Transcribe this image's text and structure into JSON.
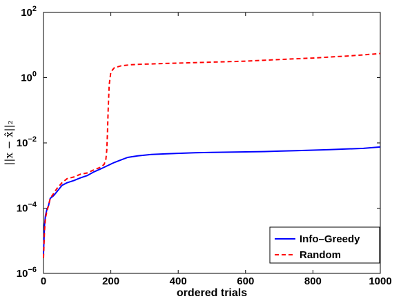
{
  "chart_data": {
    "type": "line",
    "title": "",
    "xlabel": "ordered trials",
    "ylabel": "||x − x̂||₂",
    "xlim": [
      0,
      1000
    ],
    "ylim": [
      1e-06,
      100
    ],
    "yscale": "log",
    "x_ticks": [
      0,
      200,
      400,
      600,
      800,
      1000
    ],
    "y_ticks": [
      {
        "value": 1e-06,
        "base": "10",
        "exp": "−6"
      },
      {
        "value": 0.0001,
        "base": "10",
        "exp": "−4"
      },
      {
        "value": 0.01,
        "base": "10",
        "exp": "−2"
      },
      {
        "value": 1,
        "base": "10",
        "exp": "0"
      },
      {
        "value": 100,
        "base": "10",
        "exp": "2"
      }
    ],
    "grid": false,
    "legend_position": "bottom-right",
    "series": [
      {
        "name": "Info–Greedy",
        "color": "#0000ff",
        "dash": "solid",
        "x": [
          0,
          3,
          6,
          10,
          15,
          20,
          30,
          40,
          55,
          70,
          90,
          110,
          130,
          150,
          170,
          190,
          210,
          230,
          250,
          280,
          320,
          360,
          400,
          450,
          500,
          550,
          600,
          650,
          700,
          750,
          800,
          850,
          900,
          950,
          1000
        ],
        "y": [
          4e-06,
          3e-05,
          6e-05,
          9e-05,
          0.00012,
          0.0002,
          0.00024,
          0.00032,
          0.0005,
          0.0006,
          0.0007,
          0.00085,
          0.001,
          0.0013,
          0.0016,
          0.002,
          0.0025,
          0.003,
          0.0036,
          0.004,
          0.0044,
          0.0046,
          0.0048,
          0.005,
          0.0051,
          0.0052,
          0.0053,
          0.0054,
          0.0056,
          0.0058,
          0.006,
          0.0062,
          0.0065,
          0.0068,
          0.0075
        ]
      },
      {
        "name": "Random",
        "color": "#ff0000",
        "dash": "dashed",
        "x": [
          0,
          3,
          6,
          10,
          15,
          20,
          30,
          40,
          55,
          70,
          90,
          110,
          130,
          150,
          170,
          180,
          185,
          188,
          190,
          192,
          195,
          200,
          210,
          230,
          260,
          300,
          350,
          400,
          450,
          500,
          550,
          600,
          650,
          700,
          750,
          800,
          850,
          900,
          950,
          1000
        ],
        "y": [
          3e-06,
          2e-05,
          5e-05,
          8e-05,
          0.00012,
          0.0002,
          0.00028,
          0.0004,
          0.0006,
          0.0008,
          0.0009,
          0.0011,
          0.0012,
          0.0015,
          0.0018,
          0.0022,
          0.003,
          0.006,
          0.02,
          0.1,
          0.6,
          1.5,
          2.0,
          2.3,
          2.5,
          2.6,
          2.7,
          2.8,
          2.9,
          3.0,
          3.1,
          3.2,
          3.4,
          3.6,
          3.8,
          4.0,
          4.3,
          4.6,
          5.0,
          5.5
        ]
      }
    ]
  }
}
